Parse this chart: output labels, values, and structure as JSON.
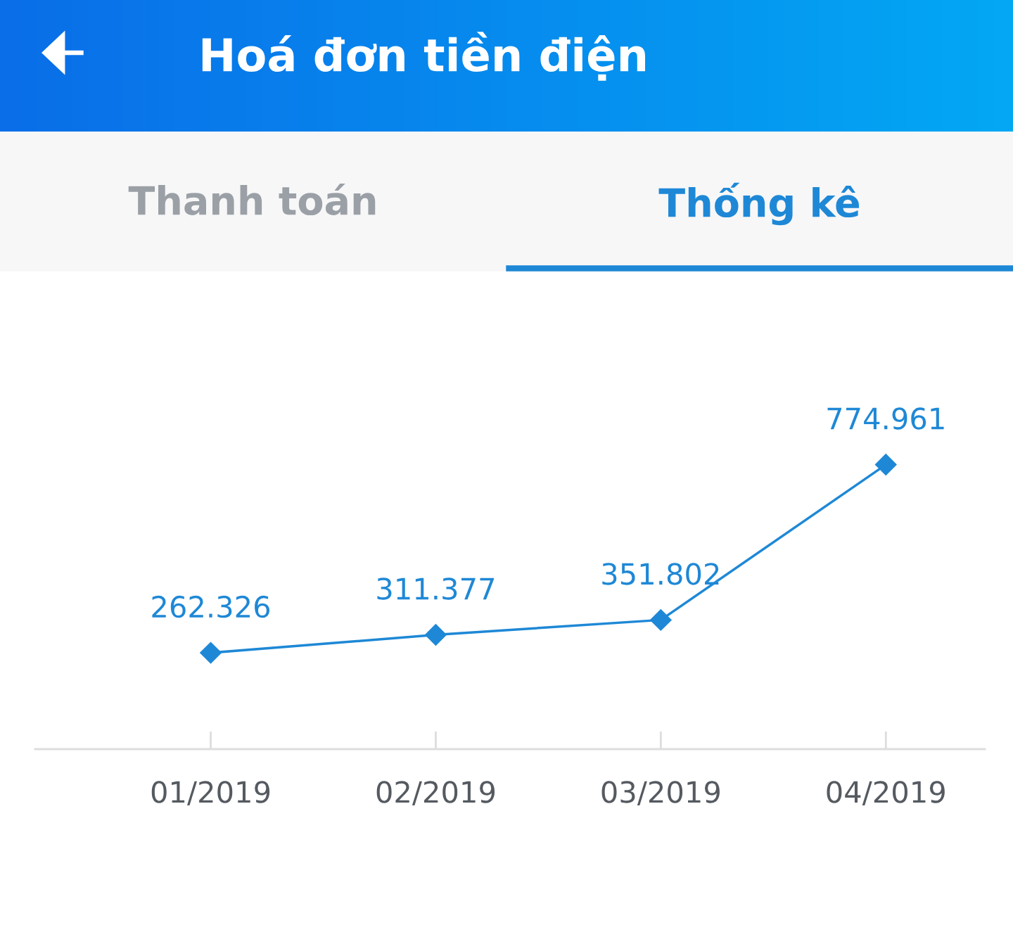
{
  "chart_data": {
    "type": "line",
    "title": "Hoá đơn tiền điện",
    "annotations": [
      "Thanh toán",
      "Thống kê"
    ],
    "categories": [
      "01/2019",
      "02/2019",
      "03/2019",
      "04/2019"
    ],
    "series": [
      {
        "color": "#1e88d6",
        "values": [
          262326,
          311377,
          351802,
          774961
        ],
        "value_labels": [
          "262.326",
          "311.377",
          "351.802",
          "774.961"
        ]
      }
    ],
    "marker": "diamond",
    "line_style": "solid",
    "grid": false,
    "legend": false
  }
}
